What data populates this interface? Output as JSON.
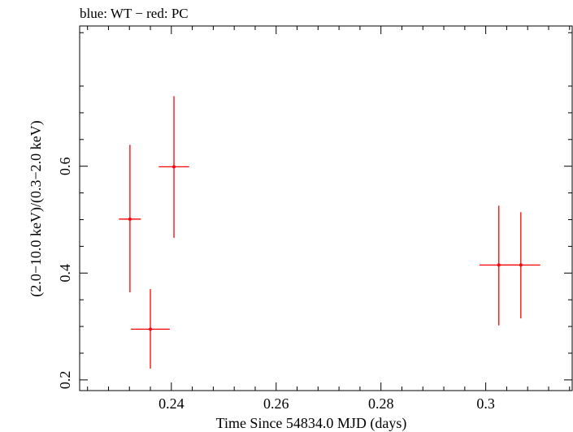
{
  "chart_data": {
    "type": "scatter",
    "title": "blue: WT − red: PC",
    "xlabel": "Time Since 54834.0 MJD (days)",
    "ylabel": "(2.0−10.0 keV)/(0.3−2.0 keV)",
    "xlim": [
      0.2225,
      0.3165
    ],
    "ylim": [
      0.18,
      0.8625
    ],
    "xticks": [
      0.24,
      0.26,
      0.28,
      0.3
    ],
    "xtick_labels": [
      "0.24",
      "0.26",
      "0.28",
      "0.3"
    ],
    "yticks": [
      0.2,
      0.4,
      0.6
    ],
    "ytick_labels": [
      "0.2",
      "0.4",
      "0.6"
    ],
    "grid": false,
    "series": [
      {
        "color": "#ff0000",
        "points": [
          {
            "x": 0.2321,
            "xerr": 0.0021,
            "y": 0.501,
            "ylo": 0.364,
            "yhi": 0.64
          },
          {
            "x": 0.236,
            "xerr": 0.0037,
            "y": 0.295,
            "ylo": 0.221,
            "yhi": 0.37
          },
          {
            "x": 0.2405,
            "xerr": 0.0029,
            "y": 0.599,
            "ylo": 0.466,
            "yhi": 0.731
          },
          {
            "x": 0.3025,
            "xerr": 0.0037,
            "y": 0.415,
            "ylo": 0.302,
            "yhi": 0.526
          },
          {
            "x": 0.3067,
            "xerr": 0.0037,
            "y": 0.415,
            "ylo": 0.315,
            "yhi": 0.514
          }
        ]
      }
    ]
  }
}
